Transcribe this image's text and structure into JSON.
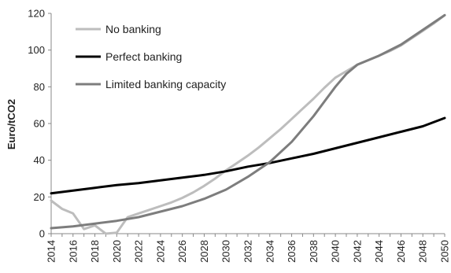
{
  "chart_data": {
    "type": "line",
    "title": "",
    "xlabel": "",
    "ylabel": "Euro/tCO2",
    "ylim": [
      0,
      120
    ],
    "yticks": [
      0,
      20,
      40,
      60,
      80,
      100,
      120
    ],
    "xlim": [
      2014,
      2050
    ],
    "xticks": [
      2014,
      2016,
      2018,
      2020,
      2022,
      2024,
      2026,
      2028,
      2030,
      2032,
      2034,
      2036,
      2038,
      2040,
      2042,
      2044,
      2046,
      2048,
      2050
    ],
    "grid": false,
    "legend_position": "top-left",
    "series": [
      {
        "name": "No banking",
        "color": "#bdbdbd",
        "width": 3,
        "x": [
          2014,
          2015,
          2016,
          2017,
          2018,
          2019,
          2020,
          2021,
          2022,
          2023,
          2024,
          2025,
          2026,
          2027,
          2028,
          2029,
          2030,
          2031,
          2032,
          2033,
          2034,
          2035,
          2036,
          2037,
          2038,
          2039,
          2040,
          2041,
          2042,
          2043,
          2044,
          2045,
          2046,
          2047,
          2048,
          2049,
          2050
        ],
        "values": [
          18,
          13.5,
          11,
          2.5,
          4.5,
          0,
          0.5,
          9,
          11,
          13,
          15,
          17,
          19.5,
          22.5,
          26,
          30,
          34.5,
          38.5,
          42.5,
          47,
          52,
          57,
          62.5,
          68,
          73.5,
          79.5,
          85,
          88.5,
          92,
          94.5,
          97,
          99.5,
          102.5,
          106.5,
          110.5,
          114.5,
          119
        ]
      },
      {
        "name": "Perfect banking",
        "color": "#000000",
        "width": 3,
        "x": [
          2014,
          2016,
          2018,
          2020,
          2022,
          2024,
          2026,
          2028,
          2030,
          2032,
          2034,
          2036,
          2038,
          2040,
          2042,
          2044,
          2046,
          2048,
          2050
        ],
        "values": [
          22,
          23.5,
          25,
          26.5,
          27.5,
          29,
          30.5,
          32,
          34,
          36.5,
          38.5,
          41,
          43.5,
          46.5,
          49.5,
          52.5,
          55.5,
          58.5,
          63
        ]
      },
      {
        "name": "Limited banking capacity",
        "color": "#7d7d7d",
        "width": 3,
        "x": [
          2014,
          2016,
          2018,
          2020,
          2022,
          2024,
          2026,
          2028,
          2030,
          2032,
          2034,
          2036,
          2038,
          2040,
          2041,
          2042,
          2044,
          2046,
          2048,
          2050
        ],
        "values": [
          3,
          4,
          5.5,
          7,
          9,
          12,
          15,
          19,
          24,
          31,
          39,
          50,
          64,
          80,
          87,
          92,
          97,
          103,
          111,
          119
        ]
      }
    ]
  }
}
